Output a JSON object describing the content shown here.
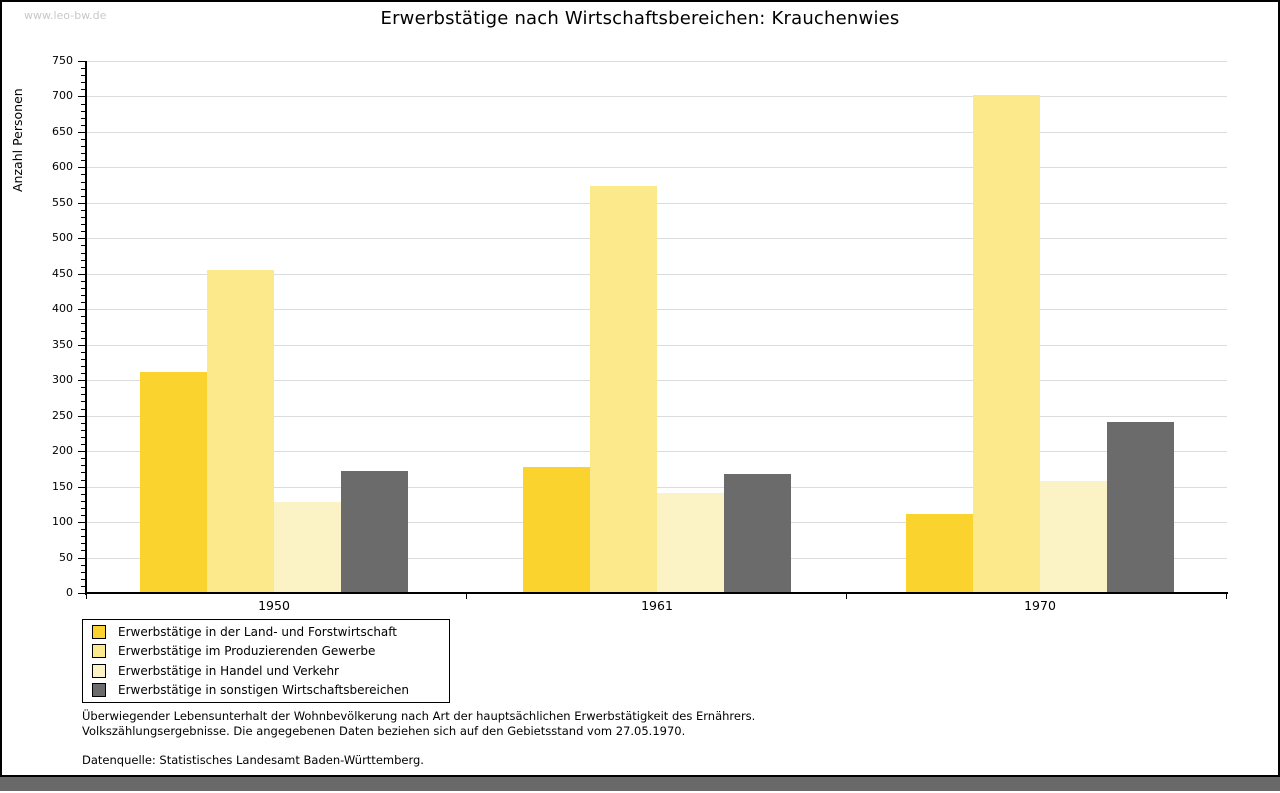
{
  "watermark": "www.leo-bw.de",
  "title": "Erwerbstätige nach Wirtschaftsbereichen: Krauchenwies",
  "chart_data": {
    "type": "bar",
    "title": "Erwerbstätige nach Wirtschaftsbereichen: Krauchenwies",
    "xlabel": "",
    "ylabel": "Anzahl Personen",
    "ylim": [
      0,
      750
    ],
    "ytick_step": 50,
    "minor_tick_step": 10,
    "grid": true,
    "legend_position": "bottom-left",
    "categories": [
      "1950",
      "1961",
      "1970"
    ],
    "series": [
      {
        "name": "Erwerbstätige in der Land- und Forstwirtschaft",
        "color": "#FBD32E",
        "values": [
          312,
          178,
          112
        ]
      },
      {
        "name": "Erwerbstätige im Produzierenden Gewerbe",
        "color": "#FCE98C",
        "values": [
          456,
          574,
          702
        ]
      },
      {
        "name": "Erwerbstätige in Handel und Verkehr",
        "color": "#FBF3C5",
        "values": [
          128,
          141,
          158
        ]
      },
      {
        "name": "Erwerbstätige in sonstigen Wirtschaftsbereichen",
        "color": "#6B6B6B",
        "values": [
          172,
          168,
          241
        ]
      }
    ]
  },
  "footer": {
    "line1": "Überwiegender Lebensunterhalt der Wohnbevölkerung nach Art der hauptsächlichen Erwerbstätigkeit des Ernährers.",
    "line2": "Volkszählungsergebnisse. Die angegebenen Daten beziehen sich auf den Gebietsstand vom 27.05.1970.",
    "source": "Datenquelle: Statistisches Landesamt Baden-Württemberg."
  },
  "colors": {
    "grid": "#DCDCDC",
    "axis": "#000000",
    "watermark": "#C8C8C8",
    "bottom_strip": "#696969"
  }
}
